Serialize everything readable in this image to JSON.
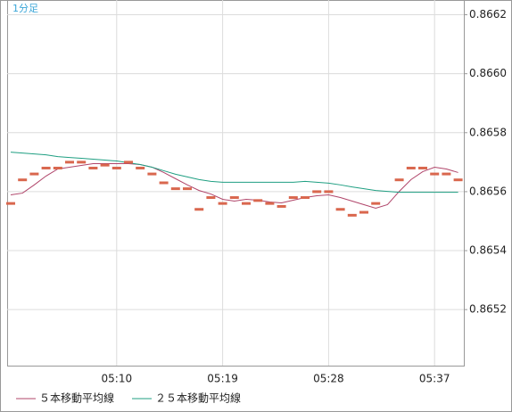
{
  "chart_data": {
    "type": "line",
    "annotation": "1分足",
    "categories": [
      null,
      null,
      null,
      null,
      null,
      null,
      null,
      null,
      null,
      "05:10",
      null,
      null,
      null,
      null,
      null,
      null,
      null,
      null,
      "05:19",
      null,
      null,
      null,
      null,
      null,
      null,
      null,
      null,
      "05:28",
      null,
      null,
      null,
      null,
      null,
      null,
      null,
      null,
      "05:37",
      null,
      null
    ],
    "values": [
      0.86556,
      0.86564,
      0.86566,
      0.86568,
      0.86568,
      0.8657,
      0.8657,
      0.86568,
      0.86569,
      0.86568,
      0.8657,
      0.86568,
      0.86566,
      0.86563,
      0.86561,
      0.86561,
      0.86554,
      0.86558,
      0.86556,
      0.86558,
      0.86556,
      0.86557,
      0.86556,
      0.86555,
      0.86558,
      0.86558,
      0.8656,
      0.8656,
      0.86554,
      0.86552,
      0.86553,
      0.86556,
      null,
      0.86564,
      0.86568,
      0.86568,
      0.86566,
      0.86566,
      0.86564
    ],
    "color": "#d9674e",
    "series": [
      {
        "name": "５本移動平均線",
        "color": "#b0456a",
        "values": [
          0.865589,
          0.865595,
          0.865623,
          0.865653,
          0.865677,
          0.865683,
          0.865689,
          0.865695,
          0.865695,
          0.865695,
          0.865695,
          0.865692,
          0.865683,
          0.865665,
          0.865644,
          0.865623,
          0.865604,
          0.865592,
          0.865574,
          0.865568,
          0.865574,
          0.865571,
          0.865565,
          0.865562,
          0.865571,
          0.86558,
          0.865586,
          0.865589,
          0.86558,
          0.865568,
          0.865556,
          0.865544,
          0.865556,
          0.865601,
          0.865641,
          0.865668,
          0.865683,
          0.865677,
          0.865665
        ]
      },
      {
        "name": "２５本移動平均線",
        "color": "#1f9f82",
        "values": [
          0.865734,
          0.865731,
          0.865728,
          0.865725,
          0.865719,
          0.865716,
          0.865713,
          0.86571,
          0.865707,
          0.865704,
          0.865698,
          0.865692,
          0.865683,
          0.865671,
          0.865659,
          0.86565,
          0.865641,
          0.865635,
          0.865632,
          0.865632,
          0.865632,
          0.865632,
          0.865632,
          0.865632,
          0.865632,
          0.865635,
          0.865632,
          0.865629,
          0.865623,
          0.865616,
          0.86561,
          0.865604,
          0.865601,
          0.865598,
          0.865598,
          0.865598,
          0.865598,
          0.865598,
          0.865598
        ]
      }
    ],
    "ylim": [
      0.86501,
      0.86625
    ],
    "yticks": [
      0.8652,
      0.8654,
      0.8656,
      0.8658,
      {
        "value": 0.866,
        "label": "0.8660"
      },
      0.8662
    ],
    "grid": true
  }
}
